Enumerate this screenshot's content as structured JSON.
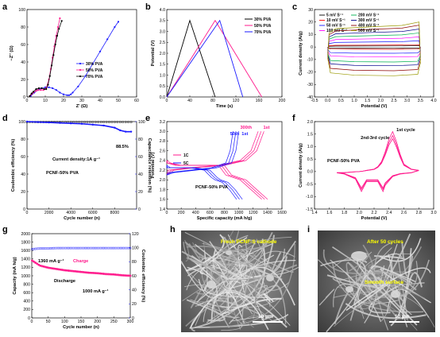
{
  "panels": {
    "a": "a",
    "b": "b",
    "c": "c",
    "d": "d",
    "e": "e",
    "f": "f",
    "g": "g",
    "h": "h",
    "i": "i"
  },
  "chart_data": [
    {
      "id": "a",
      "type": "line",
      "xlabel": "Z′ (Ω)",
      "ylabel": "−Z″ (Ω)",
      "xlim": [
        0,
        60
      ],
      "ylim": [
        0,
        100
      ],
      "xticks": [
        0,
        10,
        20,
        30,
        40,
        50,
        60
      ],
      "yticks": [
        0,
        20,
        40,
        60,
        80,
        100
      ],
      "legend_position": "right",
      "series": [
        {
          "name": "30% PVA",
          "color": "#1a1aff",
          "marker": "circle",
          "x": [
            2,
            4,
            6,
            8,
            10,
            12,
            14,
            16,
            18,
            20,
            22,
            23,
            24,
            25,
            28,
            32,
            36,
            40,
            44,
            48,
            50
          ],
          "y": [
            1,
            5,
            8,
            10,
            11,
            11,
            10,
            8,
            5,
            3,
            2,
            2,
            3,
            5,
            12,
            24,
            38,
            52,
            66,
            80,
            86
          ]
        },
        {
          "name": "50% PVA",
          "color": "#ff1a8c",
          "marker": "circle",
          "x": [
            1.5,
            2.5,
            3.5,
            5,
            6,
            7.5,
            9,
            10.5,
            12,
            13,
            14,
            15,
            16,
            17,
            18
          ],
          "y": [
            1,
            3,
            5,
            7,
            8,
            8,
            8,
            10,
            20,
            32,
            45,
            58,
            70,
            80,
            90
          ]
        },
        {
          "name": "70% PVA",
          "color": "#000000",
          "marker": "circle",
          "x": [
            1.5,
            2.5,
            3.5,
            5,
            6.5,
            8,
            9.5,
            10.5,
            11.5,
            12.5,
            13.5,
            14.5,
            15.5,
            16.5,
            17.5,
            19
          ],
          "y": [
            1,
            4,
            6,
            9,
            10,
            10,
            9,
            9,
            14,
            24,
            36,
            48,
            60,
            70,
            78,
            87
          ]
        }
      ]
    },
    {
      "id": "b",
      "type": "line",
      "xlabel": "Time (s)",
      "ylabel": "Potential (V)",
      "xlim": [
        0,
        200
      ],
      "ylim": [
        0,
        4.0
      ],
      "xticks": [
        0,
        40,
        80,
        120,
        160,
        200
      ],
      "yticks": [
        0,
        0.5,
        1.0,
        1.5,
        2.0,
        2.5,
        3.0,
        3.5,
        4.0
      ],
      "legend_position": "top-right",
      "series": [
        {
          "name": "30% PVA",
          "color": "#000000",
          "x": [
            0,
            40,
            84
          ],
          "y": [
            0,
            3.5,
            0
          ]
        },
        {
          "name": "50% PVA",
          "color": "#ff1a8c",
          "x": [
            0,
            84,
            165
          ],
          "y": [
            0,
            3.5,
            0
          ]
        },
        {
          "name": "70% PVA",
          "color": "#1a1aff",
          "x": [
            0,
            92,
            132
          ],
          "y": [
            0,
            3.5,
            0
          ]
        }
      ]
    },
    {
      "id": "c",
      "type": "line",
      "xlabel": "Potential (V)",
      "ylabel": "Current density (A/g)",
      "xlim": [
        -0.5,
        4.0
      ],
      "ylim": [
        -40,
        30
      ],
      "xticks": [
        -0.5,
        0.0,
        0.5,
        1.0,
        1.5,
        2.0,
        2.5,
        3.0,
        3.5,
        4.0
      ],
      "yticks": [
        -40,
        -30,
        -20,
        -10,
        0,
        10,
        20,
        30
      ],
      "legend_position": "top-left",
      "cv_window": [
        0,
        3.5
      ],
      "series": [
        {
          "name": "5 mV S⁻¹",
          "color": "#000000",
          "upper": 0.8,
          "lower": -0.9
        },
        {
          "name": "10 mV S⁻¹",
          "color": "#ff0000",
          "upper": 1.5,
          "lower": -1.8
        },
        {
          "name": "50 mV S⁻¹",
          "color": "#1a1aff",
          "upper": 4,
          "lower": -5
        },
        {
          "name": "100 mV S⁻¹",
          "color": "#ff00ff",
          "upper": 6.5,
          "lower": -8
        },
        {
          "name": "200 mV S⁻¹",
          "color": "#00b050",
          "upper": 9,
          "lower": -12
        },
        {
          "name": "300 mV S⁻¹",
          "color": "#00008b",
          "upper": 11.5,
          "lower": -15
        },
        {
          "name": "400 mV S⁻¹",
          "color": "#8b0000",
          "upper": 14,
          "lower": -19
        },
        {
          "name": "500 mV S⁻¹",
          "color": "#999900",
          "upper": 16,
          "lower": -23
        }
      ]
    },
    {
      "id": "d",
      "type": "scatter",
      "xlabel": "Cycle number (n)",
      "ylabel": "Coulombic efficiency (%)",
      "y2label": "Capacitance retention (%)",
      "xlim": [
        0,
        10000
      ],
      "ylim": [
        0,
        100
      ],
      "y2lim": [
        0,
        100
      ],
      "xticks": [
        0,
        2000,
        4000,
        6000,
        8000
      ],
      "yticks": [
        0,
        20,
        40,
        60,
        80,
        100
      ],
      "y2ticks": [
        0,
        20,
        40,
        60,
        80,
        100
      ],
      "annotations": [
        "Current density:1A g⁻¹",
        "PCNF-50% PVA",
        "88.5%"
      ],
      "series": [
        {
          "name": "Coulombic efficiency",
          "color": "#000000",
          "x": [
            0,
            10000
          ],
          "y": [
            100,
            100
          ]
        },
        {
          "name": "Capacitance retention",
          "color": "#1a1aff",
          "x": [
            0,
            1000,
            2000,
            3000,
            4000,
            5000,
            6000,
            7000,
            8000,
            8500,
            9000,
            9500
          ],
          "y": [
            100,
            99.5,
            99,
            98.5,
            98,
            97.5,
            96.5,
            95.5,
            93,
            90,
            88.5,
            88.5
          ]
        }
      ]
    },
    {
      "id": "e",
      "type": "line",
      "xlabel": "Specific capacity (mA h/g)",
      "ylabel": "Potential (V)",
      "xlim": [
        0,
        1600
      ],
      "ylim": [
        1.4,
        3.2
      ],
      "xticks": [
        0,
        200,
        400,
        600,
        800,
        1000,
        1200,
        1400,
        1600
      ],
      "yticks": [
        1.4,
        1.6,
        1.8,
        2.0,
        2.2,
        2.4,
        2.6,
        2.8,
        3.0,
        3.2
      ],
      "legend_position": "left",
      "annotations": [
        "300th",
        "1st",
        "50th",
        "1st",
        "PCNF-50% PVA"
      ],
      "series": [
        {
          "name": "1C",
          "color": "#ff1a8c",
          "charge_x": [
            0,
            100,
            400,
            800,
            1100,
            1250,
            1350
          ],
          "charge_y": [
            2.1,
            2.2,
            2.25,
            2.3,
            2.4,
            2.6,
            3.0
          ],
          "discharge_x": [
            0,
            50,
            200,
            400,
            600,
            800,
            900,
            1000,
            1100,
            1250,
            1400
          ],
          "discharge_y": [
            2.4,
            2.35,
            2.3,
            2.3,
            2.3,
            2.3,
            2.1,
            2.05,
            2.0,
            1.8,
            1.6
          ]
        },
        {
          "name": "5C",
          "color": "#1a1aff",
          "charge_x": [
            0,
            100,
            400,
            700,
            900,
            960,
            1000
          ],
          "charge_y": [
            2.1,
            2.15,
            2.2,
            2.25,
            2.35,
            2.6,
            3.0
          ],
          "discharge_x": [
            0,
            50,
            200,
            400,
            600,
            700,
            750,
            850,
            950,
            1050
          ],
          "discharge_y": [
            2.3,
            2.25,
            2.25,
            2.25,
            2.2,
            2.05,
            2.0,
            1.95,
            1.8,
            1.6
          ]
        }
      ]
    },
    {
      "id": "f",
      "type": "line",
      "xlabel": "Potential (V)",
      "ylabel": "Current density (A/g)",
      "xlim": [
        1.4,
        3.0
      ],
      "ylim": [
        -1.5,
        2.0
      ],
      "xticks": [
        1.4,
        1.6,
        1.8,
        2.0,
        2.2,
        2.4,
        2.6,
        2.8,
        3.0
      ],
      "yticks": [
        -1.5,
        -1.0,
        -0.5,
        0.0,
        0.5,
        1.0,
        1.5,
        2.0
      ],
      "annotations": [
        "1st cycle",
        "2nd-3rd cycle",
        "PCNF-50% PVA"
      ],
      "series": [
        {
          "name": "CV",
          "color": "#ff1a8c",
          "x": [
            1.7,
            1.8,
            1.9,
            2.0,
            2.05,
            2.1,
            2.2,
            2.25,
            2.3,
            2.35,
            2.4,
            2.45,
            2.5,
            2.55,
            2.6,
            2.7,
            2.8,
            2.7,
            2.55,
            2.45,
            2.35,
            2.32,
            2.25,
            2.1,
            2.03,
            1.95,
            1.8,
            1.7
          ],
          "y": [
            -0.05,
            -0.05,
            -0.02,
            0.0,
            0.02,
            0.05,
            0.1,
            0.2,
            0.4,
            0.8,
            1.3,
            1.6,
            1.2,
            0.7,
            0.3,
            0.1,
            0.05,
            -0.05,
            -0.1,
            -0.2,
            -0.55,
            -0.8,
            -0.4,
            -0.4,
            -0.8,
            -0.3,
            -0.1,
            -0.05
          ]
        }
      ]
    },
    {
      "id": "g",
      "type": "scatter",
      "xlabel": "Cycle number (n)",
      "ylabel": "Capacity (mA h/g)",
      "y2label": "Coulombic efficiency (%)",
      "xlim": [
        0,
        300
      ],
      "ylim": [
        0,
        2000
      ],
      "y2lim": [
        0,
        120
      ],
      "xticks": [
        0,
        50,
        100,
        150,
        200,
        250,
        300
      ],
      "yticks": [
        0,
        200,
        400,
        600,
        800,
        1000,
        1200,
        1400,
        1600,
        1800,
        2000
      ],
      "y2ticks": [
        0,
        20,
        40,
        60,
        80,
        100,
        120
      ],
      "annotations": [
        "1360 mA g⁻¹",
        "Charge",
        "Discharge",
        "1000 mA g⁻¹"
      ],
      "series": [
        {
          "name": "Charge",
          "color": "#ff1a8c",
          "x": [
            1,
            25,
            50,
            75,
            100,
            125,
            150,
            175,
            200,
            225,
            250,
            275,
            300
          ],
          "y": [
            1360,
            1240,
            1190,
            1160,
            1130,
            1110,
            1090,
            1070,
            1060,
            1040,
            1030,
            1010,
            1000
          ]
        },
        {
          "name": "Discharge",
          "color": "#ff1a8c",
          "x": [
            1,
            25,
            50,
            75,
            100,
            125,
            150,
            175,
            200,
            225,
            250,
            275,
            300
          ],
          "y": [
            1350,
            1230,
            1180,
            1150,
            1120,
            1100,
            1080,
            1060,
            1050,
            1030,
            1020,
            1000,
            990
          ]
        },
        {
          "name": "Coulombic efficiency",
          "color": "#1a1aff",
          "x": [
            1,
            25,
            50,
            75,
            100,
            125,
            150,
            175,
            200,
            225,
            250,
            275,
            300
          ],
          "y": [
            98,
            99,
            99,
            99.5,
            99.5,
            99.5,
            99.5,
            99.5,
            99.5,
            99.5,
            99.5,
            99.5,
            99.5
          ]
        }
      ]
    }
  ],
  "sem": {
    "h": {
      "label": "Fresh PCNF-S cathode",
      "scale": "10 μm"
    },
    "i": {
      "label": "After 50 cycles",
      "note": "Smooth surface",
      "scale": "10 μm"
    }
  }
}
